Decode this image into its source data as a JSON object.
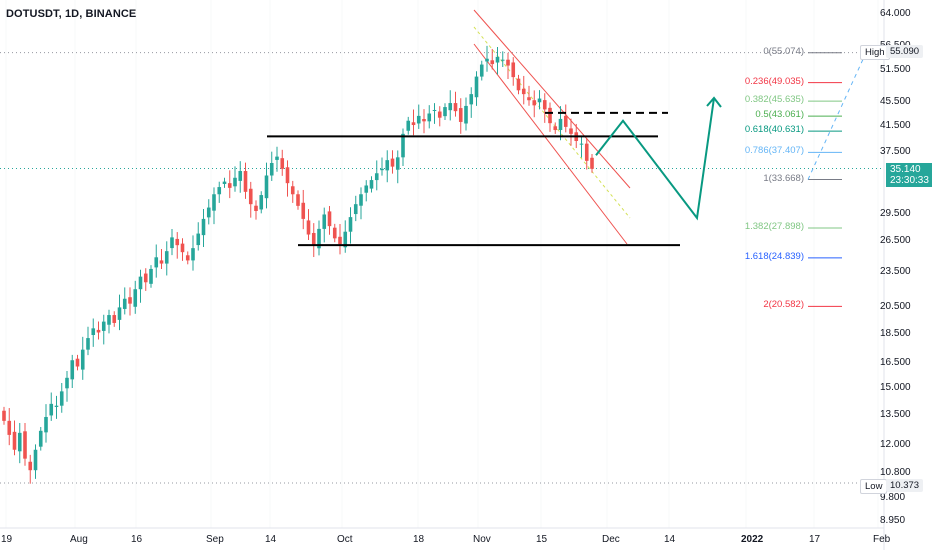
{
  "header": {
    "title": "DOTUSDT, 1D, BINANCE"
  },
  "colors": {
    "up": "#26a69a",
    "down": "#ef5350",
    "channel": "#ef5350",
    "arrow": "#089981",
    "level": "#000000"
  },
  "price_axis": [
    "64.000",
    "56.500",
    "55.090",
    "51.500",
    "45.500",
    "41.500",
    "37.500",
    "35.140",
    "29.500",
    "26.500",
    "23.500",
    "20.500",
    "18.500",
    "16.500",
    "15.000",
    "13.500",
    "12.000",
    "10.800",
    "10.373",
    "9.800",
    "8.950"
  ],
  "time_axis": [
    {
      "label": "19",
      "bold": false
    },
    {
      "label": "Aug",
      "bold": false
    },
    {
      "label": "16",
      "bold": false
    },
    {
      "label": "Sep",
      "bold": false
    },
    {
      "label": "14",
      "bold": false
    },
    {
      "label": "Oct",
      "bold": false
    },
    {
      "label": "18",
      "bold": false
    },
    {
      "label": "Nov",
      "bold": false
    },
    {
      "label": "15",
      "bold": false
    },
    {
      "label": "Dec",
      "bold": false
    },
    {
      "label": "14",
      "bold": false
    },
    {
      "label": "2022",
      "bold": true
    },
    {
      "label": "17",
      "bold": false
    },
    {
      "label": "Feb",
      "bold": false
    }
  ],
  "last_price": {
    "price": "35.140",
    "countdown": "23:30:33"
  },
  "high_badge": {
    "label": "High",
    "value": "55.090"
  },
  "low_badge": {
    "label": "Low",
    "value": "10.373"
  },
  "fib_levels": [
    {
      "ratio": "0",
      "price": "55.074",
      "text": "0(55.074)",
      "color": "#787b86"
    },
    {
      "ratio": "0.236",
      "price": "49.035",
      "text": "0.236(49.035)",
      "color": "#f23645"
    },
    {
      "ratio": "0.382",
      "price": "45.635",
      "text": "0.382(45.635)",
      "color": "#81c784"
    },
    {
      "ratio": "0.5",
      "price": "43.061",
      "text": "0.5(43.061)",
      "color": "#4caf50"
    },
    {
      "ratio": "0.618",
      "price": "40.631",
      "text": "0.618(40.631)",
      "color": "#089981"
    },
    {
      "ratio": "0.786",
      "price": "37.407",
      "text": "0.786(37.407)",
      "color": "#64b5f6"
    },
    {
      "ratio": "1",
      "price": "33.668",
      "text": "1(33.668)",
      "color": "#787b86"
    },
    {
      "ratio": "1.382",
      "price": "27.898",
      "text": "1.382(27.898)",
      "color": "#81c784"
    },
    {
      "ratio": "1.618",
      "price": "24.839",
      "text": "1.618(24.839)",
      "color": "#2962ff"
    },
    {
      "ratio": "2",
      "price": "20.582",
      "text": "2(20.582)",
      "color": "#f23645"
    }
  ],
  "chart_data": {
    "type": "candlestick",
    "symbol": "DOTUSDT",
    "interval": "1D",
    "exchange": "BINANCE",
    "ylim": [
      8.95,
      64.0
    ],
    "log_scale": true,
    "y_ticks": [
      64.0,
      56.5,
      51.5,
      45.5,
      41.5,
      37.5,
      29.5,
      26.5,
      23.5,
      20.5,
      18.5,
      16.5,
      15.0,
      13.5,
      12.0,
      10.8,
      9.8,
      8.95
    ],
    "x_ticks": [
      "19",
      "Aug",
      "16",
      "Sep",
      "14",
      "Oct",
      "18",
      "Nov",
      "15",
      "Dec",
      "14",
      "2022",
      "17",
      "Feb"
    ],
    "closes": [
      13.2,
      12.5,
      11.8,
      12.6,
      11.4,
      10.9,
      11.8,
      12.7,
      13.4,
      14.1,
      14.0,
      14.8,
      15.6,
      16.7,
      16.3,
      17.4,
      18.2,
      18.9,
      18.6,
      19.4,
      19.9,
      19.3,
      20.5,
      21.2,
      20.8,
      22.0,
      23.1,
      22.6,
      23.8,
      24.9,
      24.3,
      25.5,
      26.9,
      26.1,
      25.4,
      24.6,
      25.8,
      27.3,
      28.9,
      30.2,
      31.8,
      32.7,
      33.4,
      32.6,
      33.9,
      34.8,
      32.1,
      30.6,
      29.8,
      31.7,
      34.2,
      35.9,
      36.8,
      35.1,
      33.2,
      31.8,
      30.4,
      28.9,
      27.2,
      26.1,
      27.8,
      29.4,
      28.1,
      26.8,
      26.2,
      27.5,
      29.1,
      30.6,
      31.8,
      32.9,
      33.6,
      34.5,
      35.1,
      36.3,
      35.4,
      36.7,
      40.2,
      42.3,
      41.6,
      43.1,
      42.2,
      43.5,
      44.1,
      42.8,
      44.6,
      45.3,
      43.9,
      42.1,
      44.8,
      46.9,
      50.2,
      52.6,
      53.8,
      52.7,
      54.2,
      53.6,
      52.4,
      50.1,
      47.6,
      46.9,
      45.8,
      44.9,
      46.1,
      44.2,
      41.9,
      40.8,
      42.6,
      41.3,
      40.2,
      39.1,
      38.7,
      36.2,
      35.1
    ],
    "swing_high": 55.09,
    "swing_low": 10.373,
    "last_close": 35.14,
    "horizontal_levels": [
      39.8,
      26.1
    ],
    "dashed_level": 43.6,
    "projection_path": [
      37.0,
      42.3,
      29.0,
      46.2
    ],
    "fib_levels": [
      {
        "ratio": 0,
        "price": 55.074
      },
      {
        "ratio": 0.236,
        "price": 49.035
      },
      {
        "ratio": 0.382,
        "price": 45.635
      },
      {
        "ratio": 0.5,
        "price": 43.061
      },
      {
        "ratio": 0.618,
        "price": 40.631
      },
      {
        "ratio": 0.786,
        "price": 37.407
      },
      {
        "ratio": 1,
        "price": 33.668
      },
      {
        "ratio": 1.382,
        "price": 27.898
      },
      {
        "ratio": 1.618,
        "price": 24.839
      },
      {
        "ratio": 2,
        "price": 20.582
      }
    ]
  }
}
